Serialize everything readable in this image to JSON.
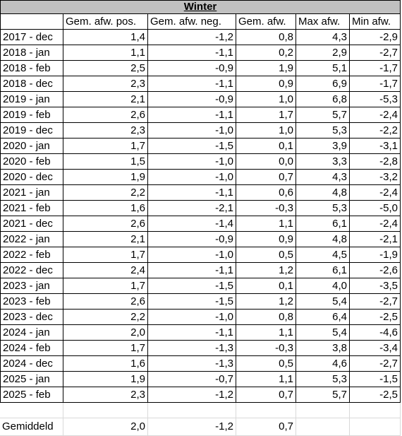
{
  "title": "Winter",
  "table": {
    "header": [
      "Gem. afw. pos.",
      "Gem. afw. neg.",
      "Gem. afw.",
      "Max afw.",
      "Min afw."
    ],
    "rows": [
      [
        "2017 - dec",
        "1,4",
        "-1,2",
        "0,8",
        "4,3",
        "-2,9"
      ],
      [
        "2018 - jan",
        "1,1",
        "-1,1",
        "0,2",
        "2,9",
        "-2,7"
      ],
      [
        "2018 - feb",
        "2,5",
        "-0,9",
        "1,9",
        "5,1",
        "-1,7"
      ],
      [
        "2018 - dec",
        "2,3",
        "-1,1",
        "0,9",
        "6,9",
        "-1,7"
      ],
      [
        "2019 - jan",
        "2,1",
        "-0,9",
        "1,0",
        "6,8",
        "-5,3"
      ],
      [
        "2019 - feb",
        "2,6",
        "-1,1",
        "1,7",
        "5,7",
        "-2,4"
      ],
      [
        "2019 - dec",
        "2,3",
        "-1,0",
        "1,0",
        "5,3",
        "-2,2"
      ],
      [
        "2020 - jan",
        "1,7",
        "-1,5",
        "0,1",
        "3,9",
        "-3,1"
      ],
      [
        "2020 - feb",
        "1,5",
        "-1,0",
        "0,0",
        "3,3",
        "-2,8"
      ],
      [
        "2020 - dec",
        "1,9",
        "-1,0",
        "0,7",
        "4,3",
        "-3,2"
      ],
      [
        "2021 - jan",
        "2,2",
        "-1,1",
        "0,6",
        "4,8",
        "-2,4"
      ],
      [
        "2021 - feb",
        "1,6",
        "-2,1",
        "-0,3",
        "5,3",
        "-5,0"
      ],
      [
        "2021 - dec",
        "2,6",
        "-1,4",
        "1,1",
        "6,1",
        "-2,4"
      ],
      [
        "2022 - jan",
        "2,1",
        "-0,9",
        "0,9",
        "4,8",
        "-2,1"
      ],
      [
        "2022 - feb",
        "1,7",
        "-1,0",
        "0,5",
        "4,5",
        "-1,9"
      ],
      [
        "2022 - dec",
        "2,4",
        "-1,1",
        "1,2",
        "6,1",
        "-2,6"
      ],
      [
        "2023 - jan",
        "1,7",
        "-1,5",
        "0,1",
        "4,0",
        "-3,5"
      ],
      [
        "2023 - feb",
        "2,6",
        "-1,5",
        "1,2",
        "5,4",
        "-2,7"
      ],
      [
        "2023 - dec",
        "2,2",
        "-1,0",
        "0,8",
        "6,4",
        "-2,5"
      ],
      [
        "2024 - jan",
        "2,0",
        "-1,1",
        "1,1",
        "5,4",
        "-4,6"
      ],
      [
        "2024 - feb",
        "1,7",
        "-1,3",
        "-0,3",
        "3,8",
        "-3,4"
      ],
      [
        "2024 - dec",
        "1,6",
        "-1,3",
        "0,5",
        "4,6",
        "-2,7"
      ],
      [
        "2025 - jan",
        "1,9",
        "-0,7",
        "1,1",
        "5,3",
        "-1,5"
      ],
      [
        "2025 - feb",
        "2,3",
        "-1,2",
        "0,7",
        "5,7",
        "-2,5"
      ]
    ],
    "footer": [
      "Gemiddeld",
      "2,0",
      "-1,2",
      "0,7"
    ]
  }
}
